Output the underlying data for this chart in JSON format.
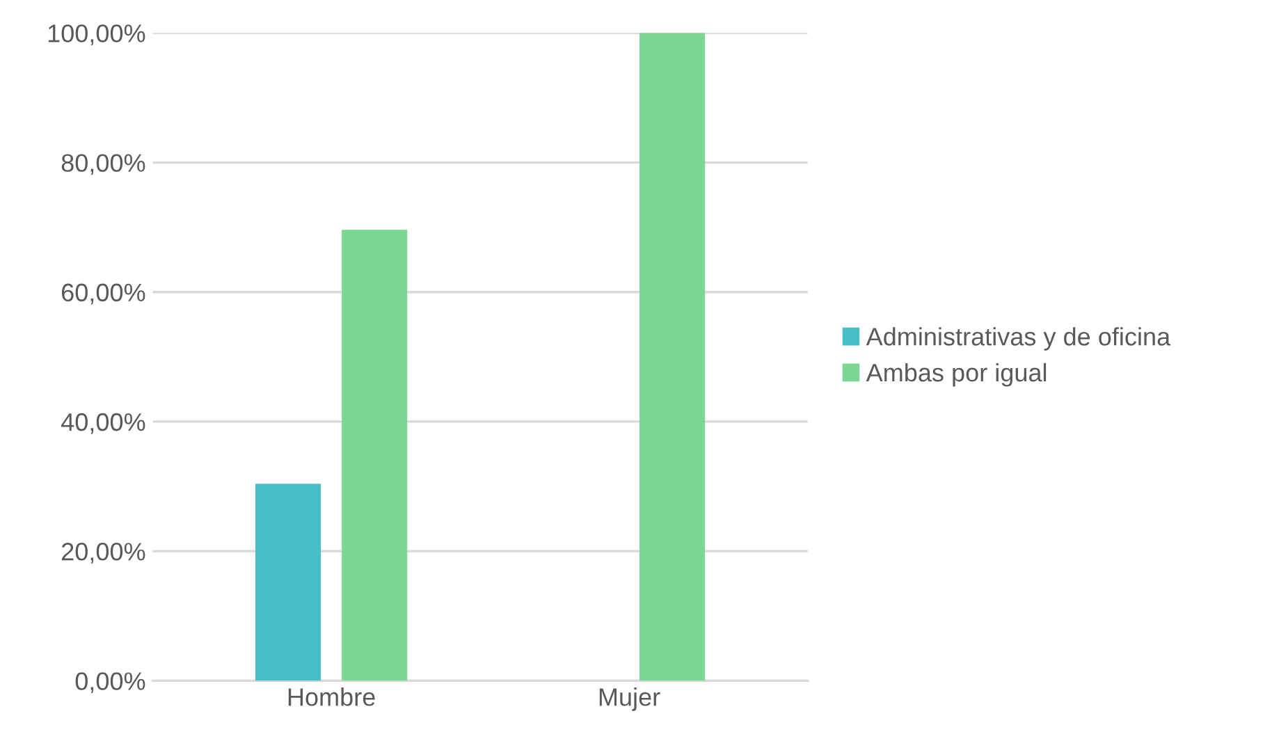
{
  "chart_data": {
    "type": "bar",
    "categories": [
      "Hombre",
      "Mujer"
    ],
    "series": [
      {
        "name": "Administrativas y de oficina",
        "color": "#48bfc6",
        "values": [
          30.4,
          0
        ]
      },
      {
        "name": "Ambas por igual",
        "color": "#7dd794",
        "values": [
          69.6,
          100
        ]
      }
    ],
    "ylim": [
      0,
      100
    ],
    "yticks": [
      {
        "value": 0,
        "label": "0,00%"
      },
      {
        "value": 20,
        "label": "20,00%"
      },
      {
        "value": 40,
        "label": "40,00%"
      },
      {
        "value": 60,
        "label": "60,00%"
      },
      {
        "value": 80,
        "label": "80,00%"
      },
      {
        "value": 100,
        "label": "100,00%"
      }
    ],
    "grid": "y",
    "legend": "right"
  }
}
